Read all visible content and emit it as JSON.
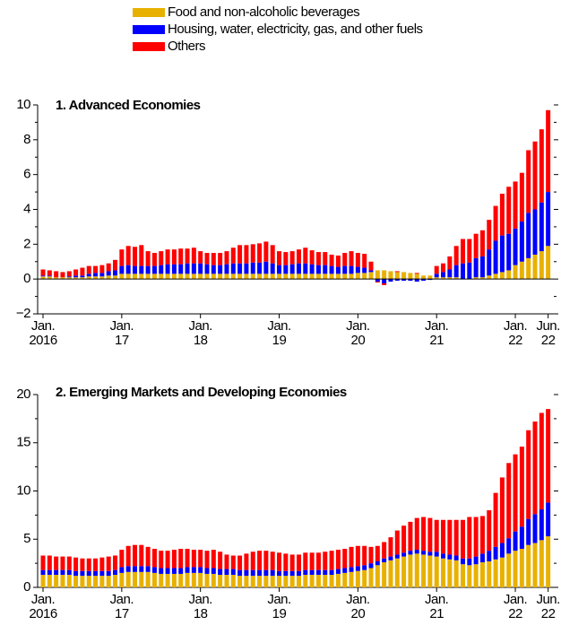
{
  "chart_data": [
    {
      "type": "bar",
      "stacked": true,
      "title": "1. Advanced Economies",
      "categories": [
        "Jan.\n2016",
        null,
        null,
        null,
        null,
        null,
        null,
        null,
        null,
        null,
        null,
        null,
        "Jan.\n17",
        null,
        null,
        null,
        null,
        null,
        null,
        null,
        null,
        null,
        null,
        null,
        "Jan.\n18",
        null,
        null,
        null,
        null,
        null,
        null,
        null,
        null,
        null,
        null,
        null,
        "Jan.\n19",
        null,
        null,
        null,
        null,
        null,
        null,
        null,
        null,
        null,
        null,
        null,
        "Jan.\n20",
        null,
        null,
        null,
        null,
        null,
        null,
        null,
        null,
        null,
        null,
        null,
        "Jan.\n21",
        null,
        null,
        null,
        null,
        null,
        null,
        null,
        null,
        null,
        null,
        null,
        "Jan.\n22",
        null,
        null,
        null,
        null,
        "Jun.\n22"
      ],
      "ylim": [
        -2,
        10
      ],
      "yticks": [
        {
          "value": -2,
          "label": "−2"
        },
        0,
        2,
        4,
        6,
        8,
        10
      ],
      "series": [
        {
          "name": "Food and non-alcoholic beverages",
          "color": "#e8b100",
          "values": [
            0.15,
            0.15,
            0.1,
            0.1,
            0.1,
            0.1,
            0.1,
            0.15,
            0.15,
            0.15,
            0.2,
            0.2,
            0.3,
            0.3,
            0.3,
            0.3,
            0.3,
            0.3,
            0.3,
            0.3,
            0.3,
            0.3,
            0.3,
            0.3,
            0.3,
            0.3,
            0.3,
            0.3,
            0.3,
            0.3,
            0.3,
            0.3,
            0.3,
            0.3,
            0.3,
            0.3,
            0.3,
            0.3,
            0.3,
            0.3,
            0.3,
            0.3,
            0.3,
            0.3,
            0.3,
            0.3,
            0.3,
            0.3,
            0.35,
            0.35,
            0.4,
            0.5,
            0.5,
            0.45,
            0.4,
            0.4,
            0.35,
            0.3,
            0.2,
            0.2,
            0.1,
            0.1,
            0.1,
            0.1,
            0.0,
            0.0,
            0.1,
            0.1,
            0.2,
            0.3,
            0.4,
            0.5,
            0.8,
            1.0,
            1.2,
            1.4,
            1.6,
            1.9
          ]
        },
        {
          "name": "Housing, water, electricity, gas, and other fuels",
          "color": "#0000ff",
          "values": [
            0.05,
            0.05,
            0.0,
            0.0,
            0.05,
            0.1,
            0.1,
            0.15,
            0.2,
            0.2,
            0.25,
            0.3,
            0.45,
            0.5,
            0.45,
            0.45,
            0.45,
            0.45,
            0.5,
            0.55,
            0.55,
            0.55,
            0.6,
            0.6,
            0.6,
            0.55,
            0.5,
            0.5,
            0.55,
            0.6,
            0.6,
            0.6,
            0.65,
            0.65,
            0.7,
            0.6,
            0.5,
            0.5,
            0.55,
            0.6,
            0.6,
            0.55,
            0.5,
            0.5,
            0.45,
            0.4,
            0.45,
            0.45,
            0.35,
            0.3,
            0.1,
            -0.15,
            -0.25,
            -0.15,
            -0.1,
            -0.1,
            -0.1,
            -0.15,
            -0.1,
            -0.05,
            0.2,
            0.3,
            0.45,
            0.7,
            0.9,
            0.95,
            1.1,
            1.2,
            1.5,
            1.9,
            2.1,
            2.1,
            2.1,
            2.3,
            2.6,
            2.6,
            2.8,
            3.1
          ]
        },
        {
          "name": "Others",
          "color": "#ff0000",
          "values": [
            0.35,
            0.3,
            0.35,
            0.3,
            0.3,
            0.35,
            0.45,
            0.45,
            0.4,
            0.45,
            0.45,
            0.6,
            0.95,
            1.1,
            1.1,
            1.2,
            0.85,
            0.75,
            0.8,
            0.85,
            0.85,
            0.9,
            0.85,
            0.9,
            0.7,
            0.65,
            0.7,
            0.7,
            0.75,
            0.9,
            1.05,
            1.05,
            1.05,
            1.1,
            1.15,
            1.05,
            0.8,
            0.75,
            0.75,
            0.8,
            0.9,
            0.8,
            0.75,
            0.75,
            0.65,
            0.65,
            0.75,
            0.85,
            0.8,
            0.8,
            0.5,
            -0.05,
            -0.1,
            0.0,
            0.05,
            0.0,
            0.0,
            0.05,
            0.0,
            0.0,
            0.45,
            0.5,
            0.75,
            1.1,
            1.4,
            1.35,
            1.4,
            1.5,
            1.7,
            2.0,
            2.4,
            2.7,
            2.7,
            2.8,
            3.6,
            3.9,
            4.2,
            4.7
          ]
        }
      ]
    },
    {
      "type": "bar",
      "stacked": true,
      "title": "2. Emerging Markets and Developing Economies",
      "categories": [
        "Jan.\n2016",
        null,
        null,
        null,
        null,
        null,
        null,
        null,
        null,
        null,
        null,
        null,
        "Jan.\n17",
        null,
        null,
        null,
        null,
        null,
        null,
        null,
        null,
        null,
        null,
        null,
        "Jan.\n18",
        null,
        null,
        null,
        null,
        null,
        null,
        null,
        null,
        null,
        null,
        null,
        "Jan.\n19",
        null,
        null,
        null,
        null,
        null,
        null,
        null,
        null,
        null,
        null,
        null,
        "Jan.\n20",
        null,
        null,
        null,
        null,
        null,
        null,
        null,
        null,
        null,
        null,
        null,
        "Jan.\n21",
        null,
        null,
        null,
        null,
        null,
        null,
        null,
        null,
        null,
        null,
        null,
        "Jan.\n22",
        null,
        null,
        null,
        null,
        "Jun.\n22"
      ],
      "ylim": [
        0,
        20
      ],
      "yticks": [
        0,
        5,
        10,
        15,
        20
      ],
      "series": [
        {
          "color": "#e8b100",
          "values": [
            1.3,
            1.3,
            1.3,
            1.3,
            1.3,
            1.2,
            1.2,
            1.2,
            1.2,
            1.2,
            1.2,
            1.3,
            1.5,
            1.6,
            1.6,
            1.6,
            1.6,
            1.5,
            1.4,
            1.4,
            1.4,
            1.4,
            1.5,
            1.5,
            1.5,
            1.4,
            1.4,
            1.3,
            1.3,
            1.3,
            1.2,
            1.2,
            1.2,
            1.2,
            1.2,
            1.2,
            1.2,
            1.2,
            1.2,
            1.2,
            1.3,
            1.3,
            1.3,
            1.3,
            1.3,
            1.4,
            1.5,
            1.6,
            1.7,
            1.8,
            2.0,
            2.3,
            2.6,
            2.8,
            3.0,
            3.2,
            3.4,
            3.5,
            3.4,
            3.3,
            3.2,
            3.0,
            2.9,
            2.8,
            2.4,
            2.3,
            2.4,
            2.6,
            2.7,
            2.9,
            3.1,
            3.5,
            3.8,
            4.0,
            4.4,
            4.6,
            4.9,
            5.3
          ]
        },
        {
          "color": "#0000ff",
          "values": [
            0.5,
            0.5,
            0.5,
            0.5,
            0.5,
            0.5,
            0.5,
            0.5,
            0.5,
            0.5,
            0.5,
            0.5,
            0.6,
            0.6,
            0.6,
            0.6,
            0.6,
            0.6,
            0.6,
            0.6,
            0.6,
            0.6,
            0.6,
            0.6,
            0.6,
            0.6,
            0.6,
            0.6,
            0.6,
            0.6,
            0.6,
            0.6,
            0.6,
            0.6,
            0.6,
            0.6,
            0.5,
            0.5,
            0.5,
            0.5,
            0.5,
            0.5,
            0.5,
            0.5,
            0.5,
            0.5,
            0.5,
            0.5,
            0.5,
            0.5,
            0.5,
            0.4,
            0.4,
            0.4,
            0.4,
            0.4,
            0.4,
            0.4,
            0.4,
            0.4,
            0.5,
            0.5,
            0.5,
            0.5,
            0.6,
            0.7,
            0.8,
            0.9,
            1.1,
            1.3,
            1.5,
            1.6,
            2.0,
            2.3,
            2.7,
            3.0,
            3.2,
            3.5
          ]
        },
        {
          "color": "#ff0000",
          "values": [
            1.5,
            1.5,
            1.4,
            1.4,
            1.4,
            1.4,
            1.3,
            1.3,
            1.3,
            1.4,
            1.5,
            1.5,
            1.8,
            2.1,
            2.2,
            2.2,
            2.0,
            1.9,
            1.8,
            1.8,
            1.9,
            2.0,
            1.9,
            1.8,
            1.8,
            1.8,
            1.9,
            1.8,
            1.5,
            1.4,
            1.5,
            1.7,
            1.9,
            2.0,
            2.0,
            1.9,
            1.9,
            1.8,
            1.7,
            1.7,
            1.8,
            1.8,
            1.8,
            1.9,
            2.0,
            2.0,
            2.0,
            2.1,
            2.1,
            2.0,
            1.7,
            1.6,
            1.7,
            2.0,
            2.5,
            2.8,
            3.0,
            3.3,
            3.5,
            3.5,
            3.3,
            3.5,
            3.6,
            3.7,
            4.0,
            4.3,
            4.1,
            3.9,
            4.2,
            5.6,
            6.8,
            7.8,
            8.0,
            8.3,
            9.2,
            9.6,
            10.0,
            9.7
          ]
        }
      ]
    }
  ]
}
